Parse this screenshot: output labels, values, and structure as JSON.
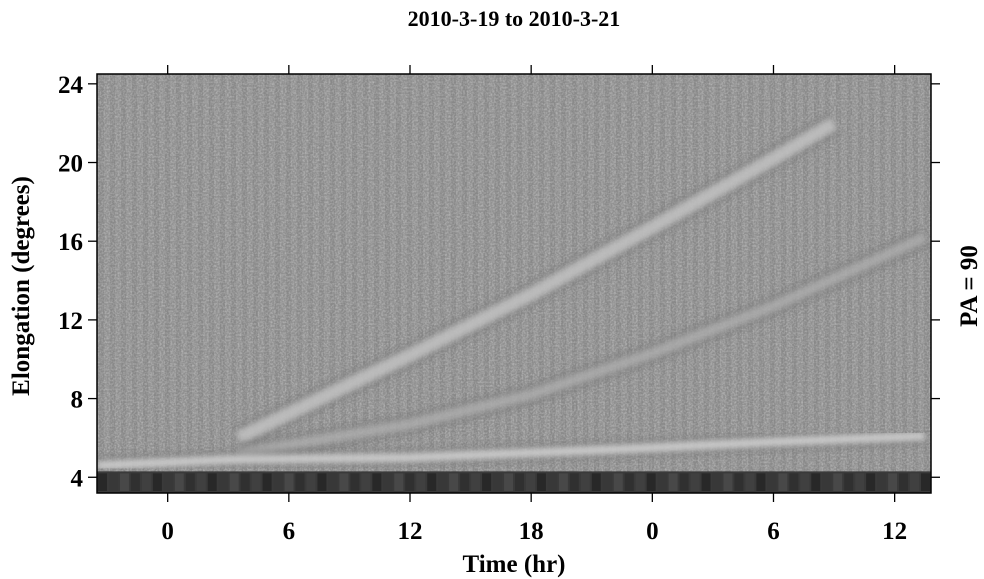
{
  "chart_data": {
    "type": "heatmap",
    "title": "2010-3-19 to 2010-3-21",
    "xlabel": "Time (hr)",
    "ylabel": "Elongation (degrees)",
    "right_label": "PA = 90",
    "x_ticks": [
      {
        "hour": 0,
        "label": "0"
      },
      {
        "hour": 6,
        "label": "6"
      },
      {
        "hour": 12,
        "label": "12"
      },
      {
        "hour": 18,
        "label": "18"
      },
      {
        "hour": 24,
        "label": "0"
      },
      {
        "hour": 30,
        "label": "6"
      },
      {
        "hour": 36,
        "label": "12"
      }
    ],
    "y_ticks": [
      4,
      8,
      12,
      16,
      20,
      24
    ],
    "xlim": [
      -3.5,
      37.8
    ],
    "ylim": [
      3.2,
      24.5
    ],
    "colormap": "grayscale",
    "grid": false,
    "features": [
      {
        "name": "steep-track",
        "points": [
          [
            3.5,
            6.0
          ],
          [
            12,
            10.2
          ],
          [
            18,
            13.3
          ],
          [
            24,
            16.7
          ],
          [
            30,
            20.2
          ],
          [
            33,
            22.0
          ]
        ]
      },
      {
        "name": "shallow-track",
        "points": [
          [
            3.5,
            5.2
          ],
          [
            12,
            6.7
          ],
          [
            18,
            8.2
          ],
          [
            24,
            10.3
          ],
          [
            30,
            12.7
          ],
          [
            37.5,
            16.2
          ]
        ]
      },
      {
        "name": "lower-band",
        "points": [
          [
            -3.5,
            4.6
          ],
          [
            3,
            4.9
          ],
          [
            12,
            5.0
          ],
          [
            24,
            5.5
          ],
          [
            30,
            5.8
          ],
          [
            37.5,
            6.1
          ]
        ]
      }
    ]
  }
}
